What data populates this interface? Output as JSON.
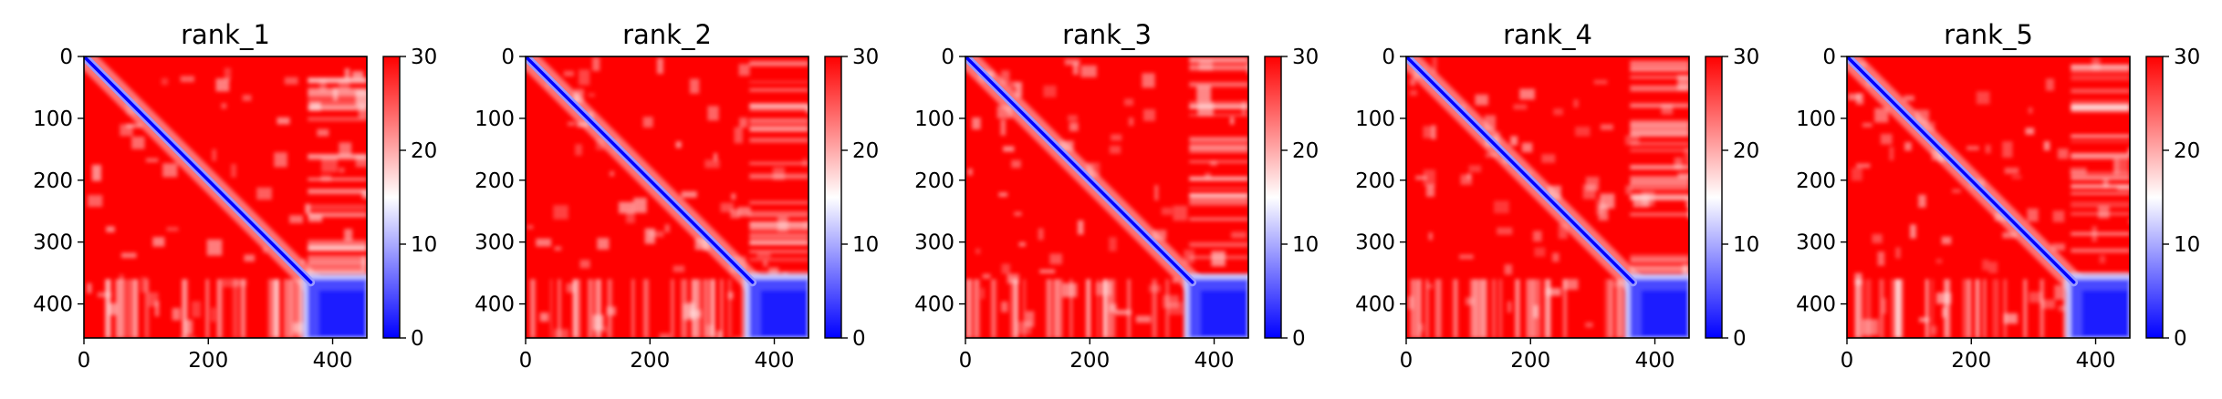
{
  "chart_data": [
    {
      "type": "heatmap",
      "title": "rank_1",
      "x_ticks": [
        0,
        200,
        400
      ],
      "y_ticks": [
        0,
        100,
        200,
        300,
        400
      ],
      "xlim": [
        0,
        455
      ],
      "ylim": [
        455,
        0
      ],
      "colorbar": {
        "ticks": [
          0,
          10,
          20,
          30
        ],
        "range": [
          0,
          30
        ],
        "colormap": "bwr"
      },
      "diagonal_value": 0,
      "background_value": 30,
      "blue_block": [
        360,
        455
      ]
    },
    {
      "type": "heatmap",
      "title": "rank_2",
      "x_ticks": [
        0,
        200,
        400
      ],
      "y_ticks": [
        0,
        100,
        200,
        300,
        400
      ],
      "xlim": [
        0,
        455
      ],
      "ylim": [
        455,
        0
      ],
      "colorbar": {
        "ticks": [
          0,
          10,
          20,
          30
        ],
        "range": [
          0,
          30
        ],
        "colormap": "bwr"
      },
      "diagonal_value": 0,
      "background_value": 30,
      "blue_block": [
        360,
        455
      ]
    },
    {
      "type": "heatmap",
      "title": "rank_3",
      "x_ticks": [
        0,
        200,
        400
      ],
      "y_ticks": [
        0,
        100,
        200,
        300,
        400
      ],
      "xlim": [
        0,
        455
      ],
      "ylim": [
        455,
        0
      ],
      "colorbar": {
        "ticks": [
          0,
          10,
          20,
          30
        ],
        "range": [
          0,
          30
        ],
        "colormap": "bwr"
      },
      "diagonal_value": 0,
      "background_value": 30,
      "blue_block": [
        360,
        455
      ]
    },
    {
      "type": "heatmap",
      "title": "rank_4",
      "x_ticks": [
        0,
        200,
        400
      ],
      "y_ticks": [
        0,
        100,
        200,
        300,
        400
      ],
      "xlim": [
        0,
        455
      ],
      "ylim": [
        455,
        0
      ],
      "colorbar": {
        "ticks": [
          0,
          10,
          20,
          30
        ],
        "range": [
          0,
          30
        ],
        "colormap": "bwr"
      },
      "diagonal_value": 0,
      "background_value": 30,
      "blue_block": [
        360,
        455
      ]
    },
    {
      "type": "heatmap",
      "title": "rank_5",
      "x_ticks": [
        0,
        200,
        400
      ],
      "y_ticks": [
        0,
        100,
        200,
        300,
        400
      ],
      "xlim": [
        0,
        455
      ],
      "ylim": [
        455,
        0
      ],
      "colorbar": {
        "ticks": [
          0,
          10,
          20,
          30
        ],
        "range": [
          0,
          30
        ],
        "colormap": "bwr"
      },
      "diagonal_value": 0,
      "background_value": 30,
      "blue_block": [
        360,
        455
      ]
    }
  ],
  "colors": {
    "high": "#ff0000",
    "mid": "#ffffff",
    "low": "#0000ff"
  }
}
